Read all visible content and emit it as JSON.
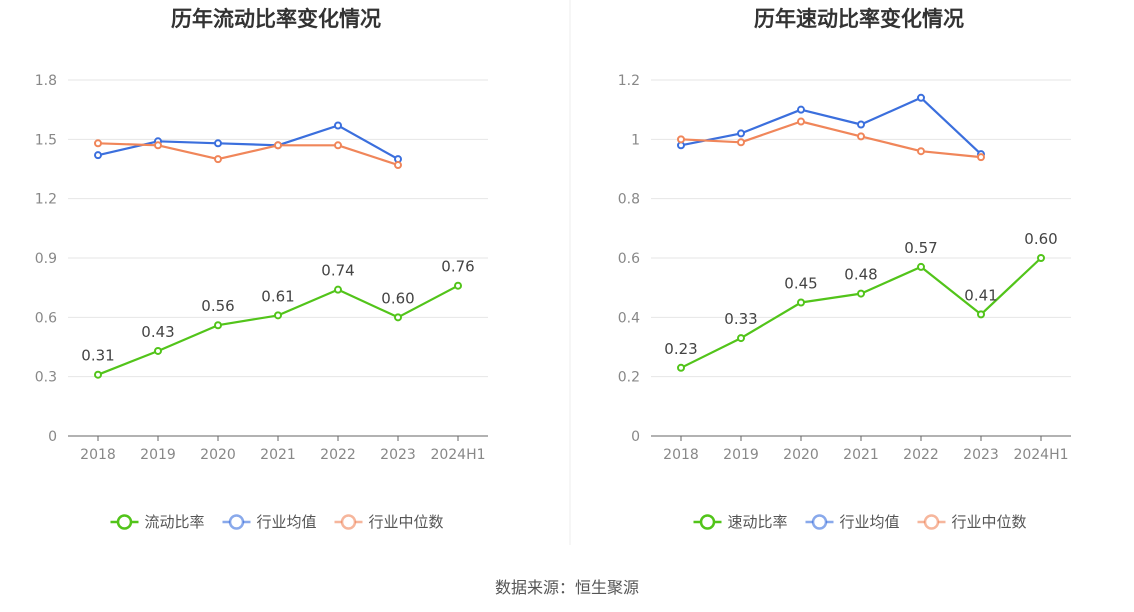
{
  "chart_data": [
    {
      "type": "line",
      "title": "历年流动比率变化情况",
      "categories": [
        "2018",
        "2019",
        "2020",
        "2021",
        "2022",
        "2023",
        "2024H1"
      ],
      "y_ticks": [
        "0",
        "0.3",
        "0.6",
        "0.9",
        "1.2",
        "1.5",
        "1.8"
      ],
      "ylim": [
        0,
        1.8
      ],
      "grid": true,
      "legend_position": "bottom-center",
      "series": [
        {
          "name": "流动比率",
          "color": "#52c41a",
          "values": [
            0.31,
            0.43,
            0.56,
            0.61,
            0.74,
            0.6,
            0.76
          ],
          "labels": [
            "0.31",
            "0.43",
            "0.56",
            "0.61",
            "0.74",
            "0.60",
            "0.76"
          ]
        },
        {
          "name": "行业均值",
          "color": "#3b6fdd",
          "values": [
            1.42,
            1.49,
            1.48,
            1.47,
            1.57,
            1.4,
            null
          ]
        },
        {
          "name": "行业中位数",
          "color": "#f0865a",
          "values": [
            1.48,
            1.47,
            1.4,
            1.47,
            1.47,
            1.37,
            null
          ]
        }
      ]
    },
    {
      "type": "line",
      "title": "历年速动比率变化情况",
      "categories": [
        "2018",
        "2019",
        "2020",
        "2021",
        "2022",
        "2023",
        "2024H1"
      ],
      "y_ticks": [
        "0",
        "0.2",
        "0.4",
        "0.6",
        "0.8",
        "1",
        "1.2"
      ],
      "ylim": [
        0,
        1.2
      ],
      "grid": true,
      "legend_position": "bottom-center",
      "series": [
        {
          "name": "速动比率",
          "color": "#52c41a",
          "values": [
            0.23,
            0.33,
            0.45,
            0.48,
            0.57,
            0.41,
            0.6
          ],
          "labels": [
            "0.23",
            "0.33",
            "0.45",
            "0.48",
            "0.57",
            "0.41",
            "0.60"
          ]
        },
        {
          "name": "行业均值",
          "color": "#3b6fdd",
          "values": [
            0.98,
            1.02,
            1.1,
            1.05,
            1.14,
            0.95,
            null
          ]
        },
        {
          "name": "行业中位数",
          "color": "#f0865a",
          "values": [
            1.0,
            0.99,
            1.06,
            1.01,
            0.96,
            0.94,
            null
          ]
        }
      ]
    }
  ],
  "source": "数据来源：恒生聚源"
}
